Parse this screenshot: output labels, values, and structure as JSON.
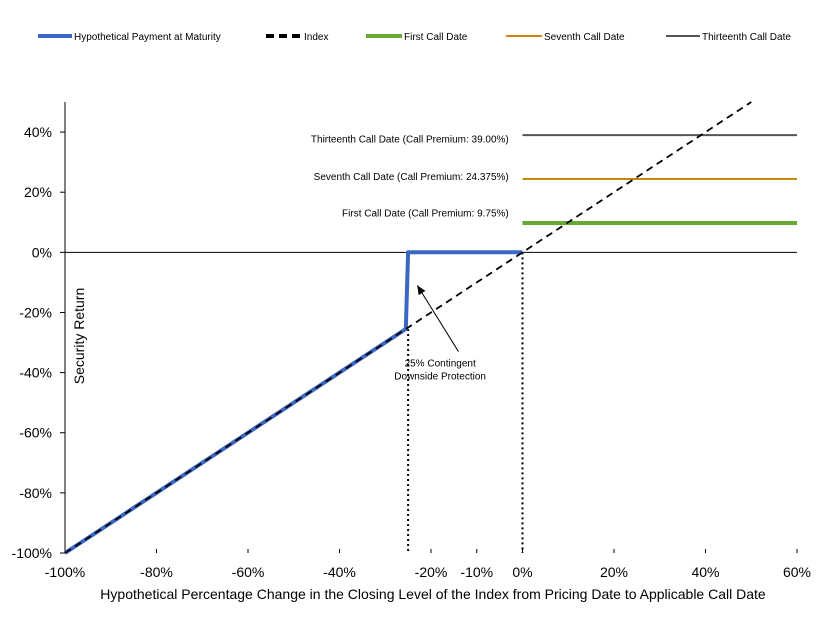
{
  "chart_data": {
    "type": "line",
    "title": "",
    "xlabel": "Hypothetical Percentage Change in the Closing Level of the Index from Pricing Date to Applicable Call Date",
    "ylabel": "Security Return",
    "xlim": [
      -100,
      60
    ],
    "ylim": [
      -100,
      50
    ],
    "grid": false,
    "legend_position": "top",
    "x_ticks": [
      "-100%",
      "-80%",
      "-60%",
      "-40%",
      "-20%",
      "-10%",
      "0%",
      "20%",
      "40%",
      "60%"
    ],
    "x_tick_values": [
      -100,
      -80,
      -60,
      -40,
      -20,
      -10,
      0,
      20,
      40,
      60
    ],
    "y_ticks": [
      "40%",
      "20%",
      "0%",
      "-20%",
      "-40%",
      "-60%",
      "-80%",
      "-100%"
    ],
    "y_tick_values": [
      40,
      20,
      0,
      -20,
      -40,
      -60,
      -80,
      -100
    ],
    "series": [
      {
        "name": "Hypothetical Payment at Maturity",
        "color": "#3a66c4",
        "style": "solid-thick",
        "x": [
          -100,
          -25.5,
          -25,
          0
        ],
        "y": [
          -100,
          -25.5,
          0,
          0
        ]
      },
      {
        "name": "Index",
        "color": "#000000",
        "style": "dashed",
        "x": [
          -100,
          50
        ],
        "y": [
          -100,
          50
        ]
      },
      {
        "name": "First Call Date",
        "color": "#66aa33",
        "style": "solid-thick",
        "x": [
          0,
          60
        ],
        "y": [
          9.75,
          9.75
        ]
      },
      {
        "name": "Seventh Call Date",
        "color": "#c8860a",
        "style": "solid",
        "x": [
          0,
          60
        ],
        "y": [
          24.375,
          24.375
        ]
      },
      {
        "name": "Thirteenth Call Date",
        "color": "#555555",
        "style": "solid",
        "x": [
          0,
          60
        ],
        "y": [
          39.0,
          39.0
        ]
      }
    ],
    "reference_lines": [
      {
        "axis": "y",
        "value": 0,
        "style": "solid"
      },
      {
        "axis": "x",
        "value": -25,
        "style": "dotted"
      },
      {
        "axis": "x",
        "value": 0,
        "style": "dotted"
      }
    ],
    "annotations": [
      {
        "text": "Thirteenth Call Date (Call Premium: 39.00%)",
        "x": -3,
        "y": 36.5
      },
      {
        "text": "Seventh Call Date (Call Premium: 24.375%)",
        "x": -3,
        "y": 24
      },
      {
        "text": "First Call Date (Call Premium: 9.75%)",
        "x": -3,
        "y": 12
      },
      {
        "text": "25% Contingent",
        "x": -18,
        "y": -38
      },
      {
        "text": "Downside Protection",
        "x": -18,
        "y": -42.3
      }
    ],
    "arrow": {
      "from": [
        -14,
        -33
      ],
      "to": [
        -23,
        -11
      ]
    }
  }
}
